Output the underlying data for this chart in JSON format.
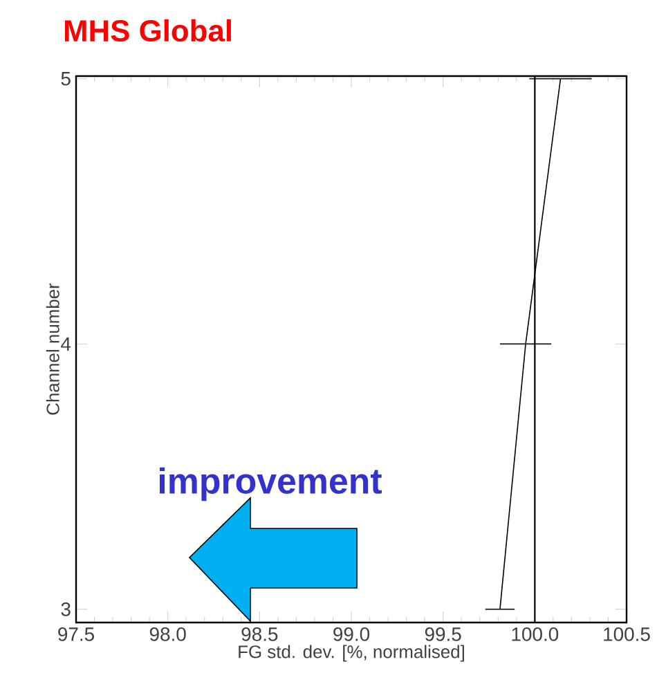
{
  "chart_data": {
    "type": "line",
    "orientation": "horizontal",
    "title": "MHS Global",
    "xlabel": "FG std. dev. [%, normalised]",
    "ylabel": "Channel number",
    "series": [
      {
        "color": "#000000",
        "x": [
          3,
          4,
          5
        ],
        "values": [
          99.81,
          99.95,
          100.14
        ],
        "errors": [
          0.08,
          0.14,
          0.17
        ]
      }
    ],
    "xlim": [
      97.5,
      100.5
    ],
    "xticks": [
      97.5,
      {
        "value": 98.0,
        "label": "98.0"
      },
      98.5,
      {
        "value": 99.0,
        "label": "99.0"
      },
      99.5,
      {
        "value": 100.0,
        "label": "100.0"
      },
      100.5
    ],
    "ylim": [
      2.95,
      5.01
    ],
    "yticks": [
      3,
      4,
      5
    ],
    "ref_lines": [
      {
        "axis": "x",
        "value": 100.0,
        "color": "#000000"
      }
    ],
    "annotations": [
      "improvement"
    ]
  }
}
